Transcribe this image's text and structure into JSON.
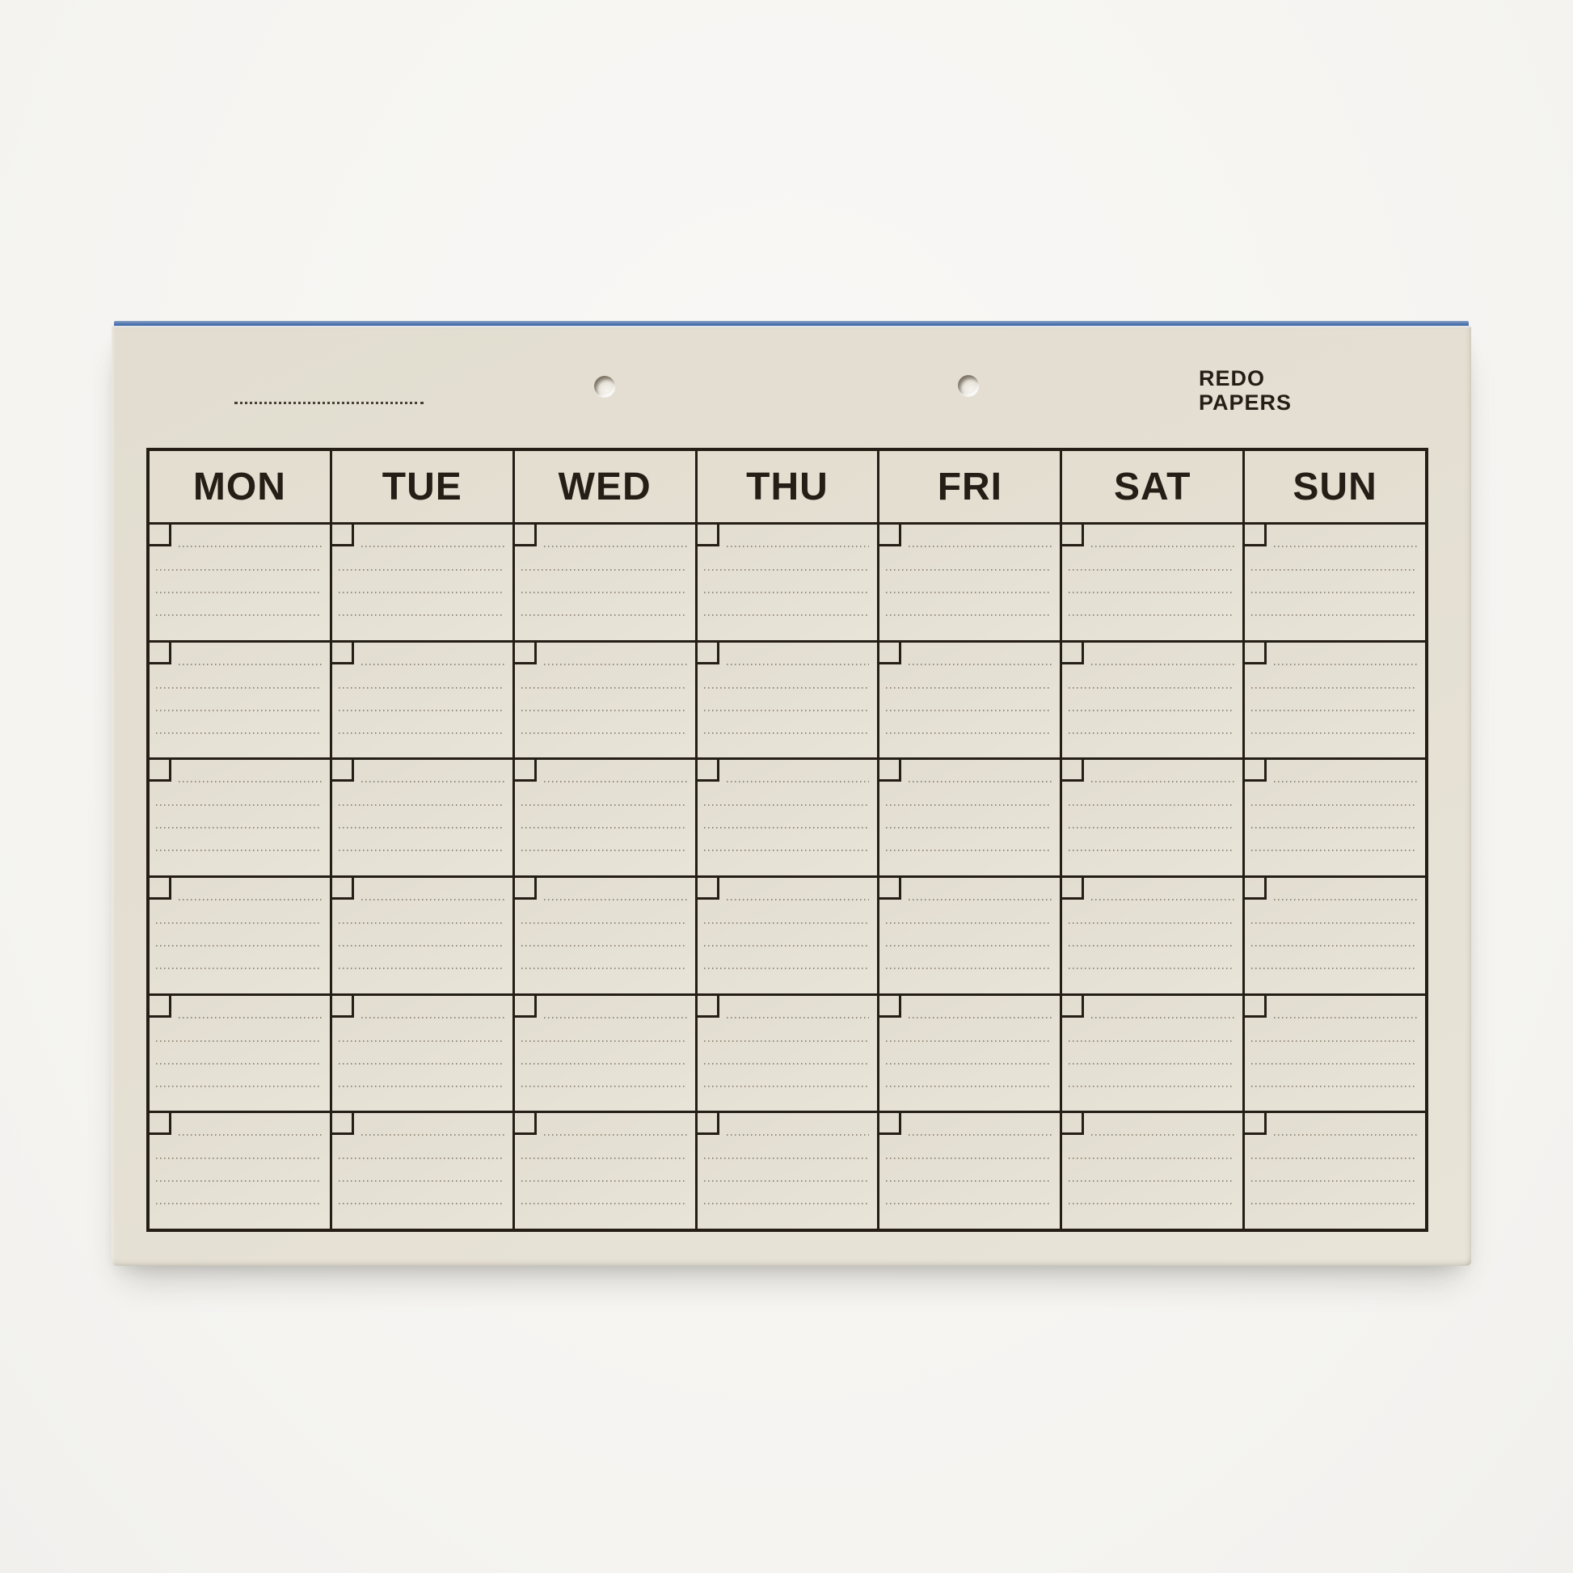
{
  "brand": {
    "line1": "REDO",
    "line2": "PAPERS"
  },
  "calendar": {
    "day_headers": [
      "MON",
      "TUE",
      "WED",
      "THU",
      "FRI",
      "SAT",
      "SUN"
    ],
    "weeks": 6,
    "note_lines_per_cell": 4
  },
  "page": {
    "holes": 2,
    "title_line_value": ""
  },
  "colors": {
    "paper": "#e4dfd2",
    "ink": "#241e16",
    "blue_edge": "#4a72ad",
    "backdrop": "#f5f4f1",
    "note_line": "#8b8372"
  }
}
